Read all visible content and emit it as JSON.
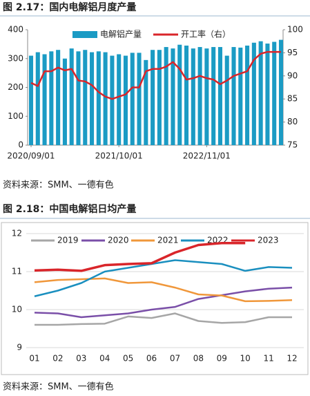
{
  "chart_data": [
    {
      "type": "bar",
      "title": "图 2.17：国内电解铝月度产量",
      "source": "资料来源：SMM、一德有色",
      "categories": [
        "2020/09/01",
        null,
        null,
        null,
        null,
        null,
        null,
        null,
        null,
        null,
        null,
        null,
        null,
        "2021/10/01",
        null,
        null,
        null,
        null,
        null,
        null,
        null,
        null,
        null,
        null,
        null,
        null,
        "2022/11/01",
        null,
        null,
        null,
        null,
        null,
        null,
        null,
        null,
        null,
        null,
        null
      ],
      "series": [
        {
          "name": "电解铝产量",
          "type": "bar",
          "color": "#1b9bc4",
          "values": [
            310,
            322,
            315,
            325,
            330,
            300,
            335,
            325,
            330,
            322,
            325,
            322,
            310,
            315,
            310,
            320,
            320,
            295,
            330,
            330,
            340,
            335,
            348,
            345,
            335,
            340,
            335,
            340,
            340,
            310,
            340,
            338,
            345,
            355,
            360,
            352,
            358,
            365
          ]
        },
        {
          "name": "开工率（右）",
          "type": "line",
          "axis": "y2",
          "color": "#d9252a",
          "values": [
            88.5,
            87.8,
            91,
            91,
            91.8,
            91.2,
            91.5,
            89,
            88.8,
            88,
            86.5,
            85.5,
            85,
            85.5,
            86,
            87.5,
            87.5,
            91,
            91.5,
            91.5,
            92,
            93,
            91.5,
            89.2,
            89.5,
            90,
            89.5,
            89.2,
            88.2,
            89,
            90,
            90.5,
            91,
            93.5,
            94.8,
            95.2,
            95.2,
            95.2
          ]
        }
      ],
      "ylim": [
        0,
        400
      ],
      "yticks": [
        0,
        100,
        200,
        300,
        400
      ],
      "y2lim": [
        75,
        100
      ],
      "y2ticks": [
        75,
        80,
        85,
        90,
        95,
        100
      ]
    },
    {
      "type": "line",
      "title": "图 2.18：中国电解铝日均产量",
      "source": "资料来源：SMM、一德有色",
      "categories": [
        "01",
        "02",
        "03",
        "04",
        "05",
        "06",
        "07",
        "08",
        "09",
        "10",
        "11",
        "12"
      ],
      "series": [
        {
          "name": "2019",
          "color": "#a6a6a6",
          "values": [
            9.6,
            9.6,
            9.62,
            9.63,
            9.82,
            9.78,
            9.9,
            9.7,
            9.65,
            9.67,
            9.8,
            9.8
          ]
        },
        {
          "name": "2020",
          "color": "#7a4fa8",
          "values": [
            9.92,
            9.9,
            9.8,
            9.85,
            9.9,
            10.0,
            10.07,
            10.28,
            10.38,
            10.48,
            10.55,
            10.58
          ]
        },
        {
          "name": "2021",
          "color": "#f0973a",
          "values": [
            10.72,
            10.78,
            10.8,
            10.82,
            10.7,
            10.72,
            10.58,
            10.4,
            10.37,
            10.22,
            10.23,
            10.25
          ]
        },
        {
          "name": "2022",
          "color": "#1a8fbf",
          "values": [
            10.35,
            10.5,
            10.7,
            11.0,
            11.1,
            11.2,
            11.3,
            11.25,
            11.2,
            11.02,
            11.12,
            11.1
          ]
        },
        {
          "name": "2023",
          "color": "#d9252a",
          "values": [
            11.03,
            11.05,
            11.02,
            11.17,
            11.2,
            11.22,
            11.5,
            11.7,
            11.75,
            11.75,
            null,
            null
          ]
        }
      ],
      "ylim": [
        9,
        12
      ],
      "yticks": [
        9,
        10,
        11,
        12
      ],
      "grid": true
    }
  ]
}
